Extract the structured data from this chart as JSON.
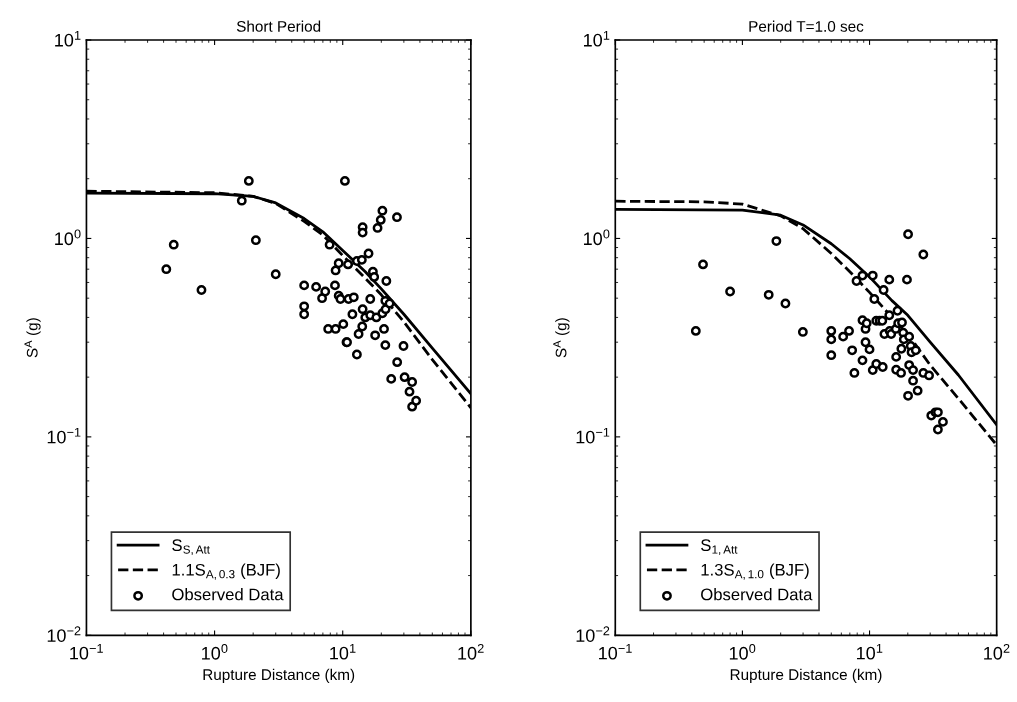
{
  "chart_data": [
    {
      "type": "line",
      "title": "Short Period",
      "xlabel": "Rupture Distance (km)",
      "ylabel": "S$^{A}$ (g)",
      "log": "xy",
      "grid": false,
      "legend": "bottom left",
      "xlim": [
        0.1,
        100
      ],
      "ylim": [
        0.01,
        10
      ],
      "xticks": [
        {
          "value": 0.1,
          "label": "10$^{−1}$"
        },
        {
          "value": 1,
          "label": "10$^{0}$"
        },
        {
          "value": 10,
          "label": "10$^{1}$"
        },
        {
          "value": 100,
          "label": "10$^{2}$"
        }
      ],
      "yticks": [
        {
          "value": 0.01,
          "label": "10$^{−2}$"
        },
        {
          "value": 0.1,
          "label": "10$^{−1}$"
        },
        {
          "value": 1,
          "label": "10$^{0}$"
        },
        {
          "value": 10,
          "label": "10$^{1}$"
        }
      ],
      "series": [
        {
          "name": "S$_{S,Att}$",
          "line_style": "solid",
          "color": "#000000",
          "x": [
            0.1,
            1,
            2,
            3,
            5,
            7,
            10,
            15,
            20,
            30,
            50,
            100
          ],
          "values": [
            1.69,
            1.68,
            1.63,
            1.51,
            1.26,
            1.08,
            0.87,
            0.68,
            0.557,
            0.415,
            0.28,
            0.165
          ]
        },
        {
          "name": "1.1S$_{A,0.3}$ (BJF)",
          "line_style": "dashed",
          "color": "#000000",
          "x": [
            0.1,
            1,
            2,
            3,
            5,
            7,
            10,
            15,
            20,
            30,
            50,
            100
          ],
          "values": [
            1.73,
            1.7,
            1.63,
            1.5,
            1.22,
            1.04,
            0.82,
            0.63,
            0.52,
            0.38,
            0.245,
            0.14
          ]
        },
        {
          "name": "Observed Data",
          "type": "scatter",
          "marker": "circle",
          "color": "#000000",
          "x": [
            0.42,
            0.48,
            0.79,
            1.63,
            1.85,
            2.1,
            3.0,
            5.0,
            5.0,
            5.0,
            6.2,
            6.9,
            7.3,
            7.9,
            7.7,
            8.7,
            8.8,
            8.8,
            9.3,
            9.3,
            9.6,
            10.1,
            10.4,
            10.7,
            10.8,
            11.0,
            11.1,
            11.9,
            12.2,
            12.9,
            12.9,
            13.3,
            14.1,
            14.2,
            14.3,
            14.3,
            14.3,
            15.0,
            15.9,
            16.4,
            16.4,
            17.2,
            17.9,
            18.3,
            18.7,
            17.6,
            19.8,
            20.4,
            20.4,
            21.0,
            21.5,
            21.5,
            21.9,
            21.6,
            23.2,
            23.9,
            26.5,
            26.6,
            29.8,
            30.4,
            33.2,
            34.8,
            34.8,
            37.4
          ],
          "values": [
            0.7,
            0.93,
            0.55,
            1.55,
            1.95,
            0.98,
            0.66,
            0.58,
            0.455,
            0.415,
            0.57,
            0.5,
            0.54,
            0.93,
            0.35,
            0.58,
            0.69,
            0.35,
            0.75,
            0.515,
            0.495,
            0.37,
            1.95,
            0.3,
            0.3,
            0.74,
            0.495,
            0.415,
            0.505,
            0.26,
            0.77,
            0.33,
            0.78,
            0.36,
            0.44,
            1.14,
            1.07,
            0.4,
            0.84,
            0.495,
            0.41,
            0.68,
            0.325,
            0.4,
            1.13,
            0.64,
            1.24,
            1.38,
            0.42,
            0.35,
            0.29,
            0.485,
            0.61,
            0.44,
            0.47,
            0.196,
            1.28,
            0.238,
            0.287,
            0.2,
            0.169,
            0.189,
            0.142,
            0.152
          ]
        }
      ]
    },
    {
      "type": "line",
      "title": "Period T=1.0 sec",
      "xlabel": "Rupture Distance (km)",
      "ylabel": "S$^{A}$ (g)",
      "log": "xy",
      "grid": false,
      "legend": "bottom left",
      "xlim": [
        0.1,
        100
      ],
      "ylim": [
        0.01,
        10
      ],
      "xticks": [
        {
          "value": 0.1,
          "label": "10$^{−1}$"
        },
        {
          "value": 1,
          "label": "10$^{0}$"
        },
        {
          "value": 10,
          "label": "10$^{1}$"
        },
        {
          "value": 100,
          "label": "10$^{2}$"
        }
      ],
      "yticks": [
        {
          "value": 0.01,
          "label": "10$^{−2}$"
        },
        {
          "value": 0.1,
          "label": "10$^{−1}$"
        },
        {
          "value": 1,
          "label": "10$^{0}$"
        },
        {
          "value": 10,
          "label": "10$^{1}$"
        }
      ],
      "series": [
        {
          "name": "S$_{1,Att}$",
          "line_style": "solid",
          "color": "#000000",
          "x": [
            0.1,
            1,
            2,
            3,
            5,
            7,
            10,
            15,
            20,
            30,
            50,
            100
          ],
          "values": [
            1.4,
            1.39,
            1.31,
            1.17,
            0.94,
            0.79,
            0.64,
            0.486,
            0.41,
            0.3,
            0.205,
            0.115
          ]
        },
        {
          "name": "1.3S$_{A,1.0}$ (BJF)",
          "line_style": "dashed",
          "color": "#000000",
          "x": [
            0.1,
            0.5,
            1,
            2,
            3,
            5,
            7,
            10,
            15,
            20,
            30,
            50,
            100
          ],
          "values": [
            1.54,
            1.53,
            1.49,
            1.3,
            1.12,
            0.84,
            0.68,
            0.535,
            0.4,
            0.33,
            0.23,
            0.156,
            0.091
          ]
        },
        {
          "name": "Observed Data",
          "type": "scatter",
          "marker": "circle",
          "color": "#000000",
          "x": [
            0.43,
            0.49,
            0.8,
            1.61,
            1.85,
            2.18,
            2.99,
            5.0,
            5.0,
            5.0,
            6.2,
            6.9,
            7.3,
            7.6,
            7.9,
            8.8,
            8.8,
            8.8,
            9.3,
            9.3,
            9.5,
            10.0,
            10.6,
            10.6,
            10.9,
            11.3,
            12.0,
            12.6,
            11.3,
            12.7,
            12.9,
            13.1,
            14.3,
            14.3,
            14.4,
            14.8,
            16.1,
            16.2,
            16.2,
            16.6,
            16.8,
            17.7,
            17.8,
            18.0,
            18.4,
            18.6,
            19.7,
            20.1,
            20.1,
            20.5,
            20.5,
            21.1,
            21.4,
            22.0,
            22.0,
            23.1,
            23.9,
            26.5,
            26.5,
            29.4,
            30.6,
            33.0,
            34.5,
            34.5,
            37.8
          ],
          "values": [
            0.342,
            0.74,
            0.54,
            0.52,
            0.97,
            0.47,
            0.338,
            0.342,
            0.31,
            0.258,
            0.32,
            0.342,
            0.273,
            0.21,
            0.61,
            0.65,
            0.387,
            0.243,
            0.3,
            0.35,
            0.374,
            0.276,
            0.65,
            0.217,
            0.495,
            0.385,
            0.385,
            0.385,
            0.233,
            0.225,
            0.55,
            0.33,
            0.62,
            0.41,
            0.342,
            0.33,
            0.35,
            0.253,
            0.218,
            0.432,
            0.374,
            0.21,
            0.278,
            0.377,
            0.335,
            0.31,
            0.62,
            1.05,
            0.161,
            0.32,
            0.23,
            0.287,
            0.267,
            0.217,
            0.192,
            0.273,
            0.171,
            0.83,
            0.21,
            0.204,
            0.128,
            0.133,
            0.133,
            0.109,
            0.119
          ]
        }
      ]
    }
  ]
}
